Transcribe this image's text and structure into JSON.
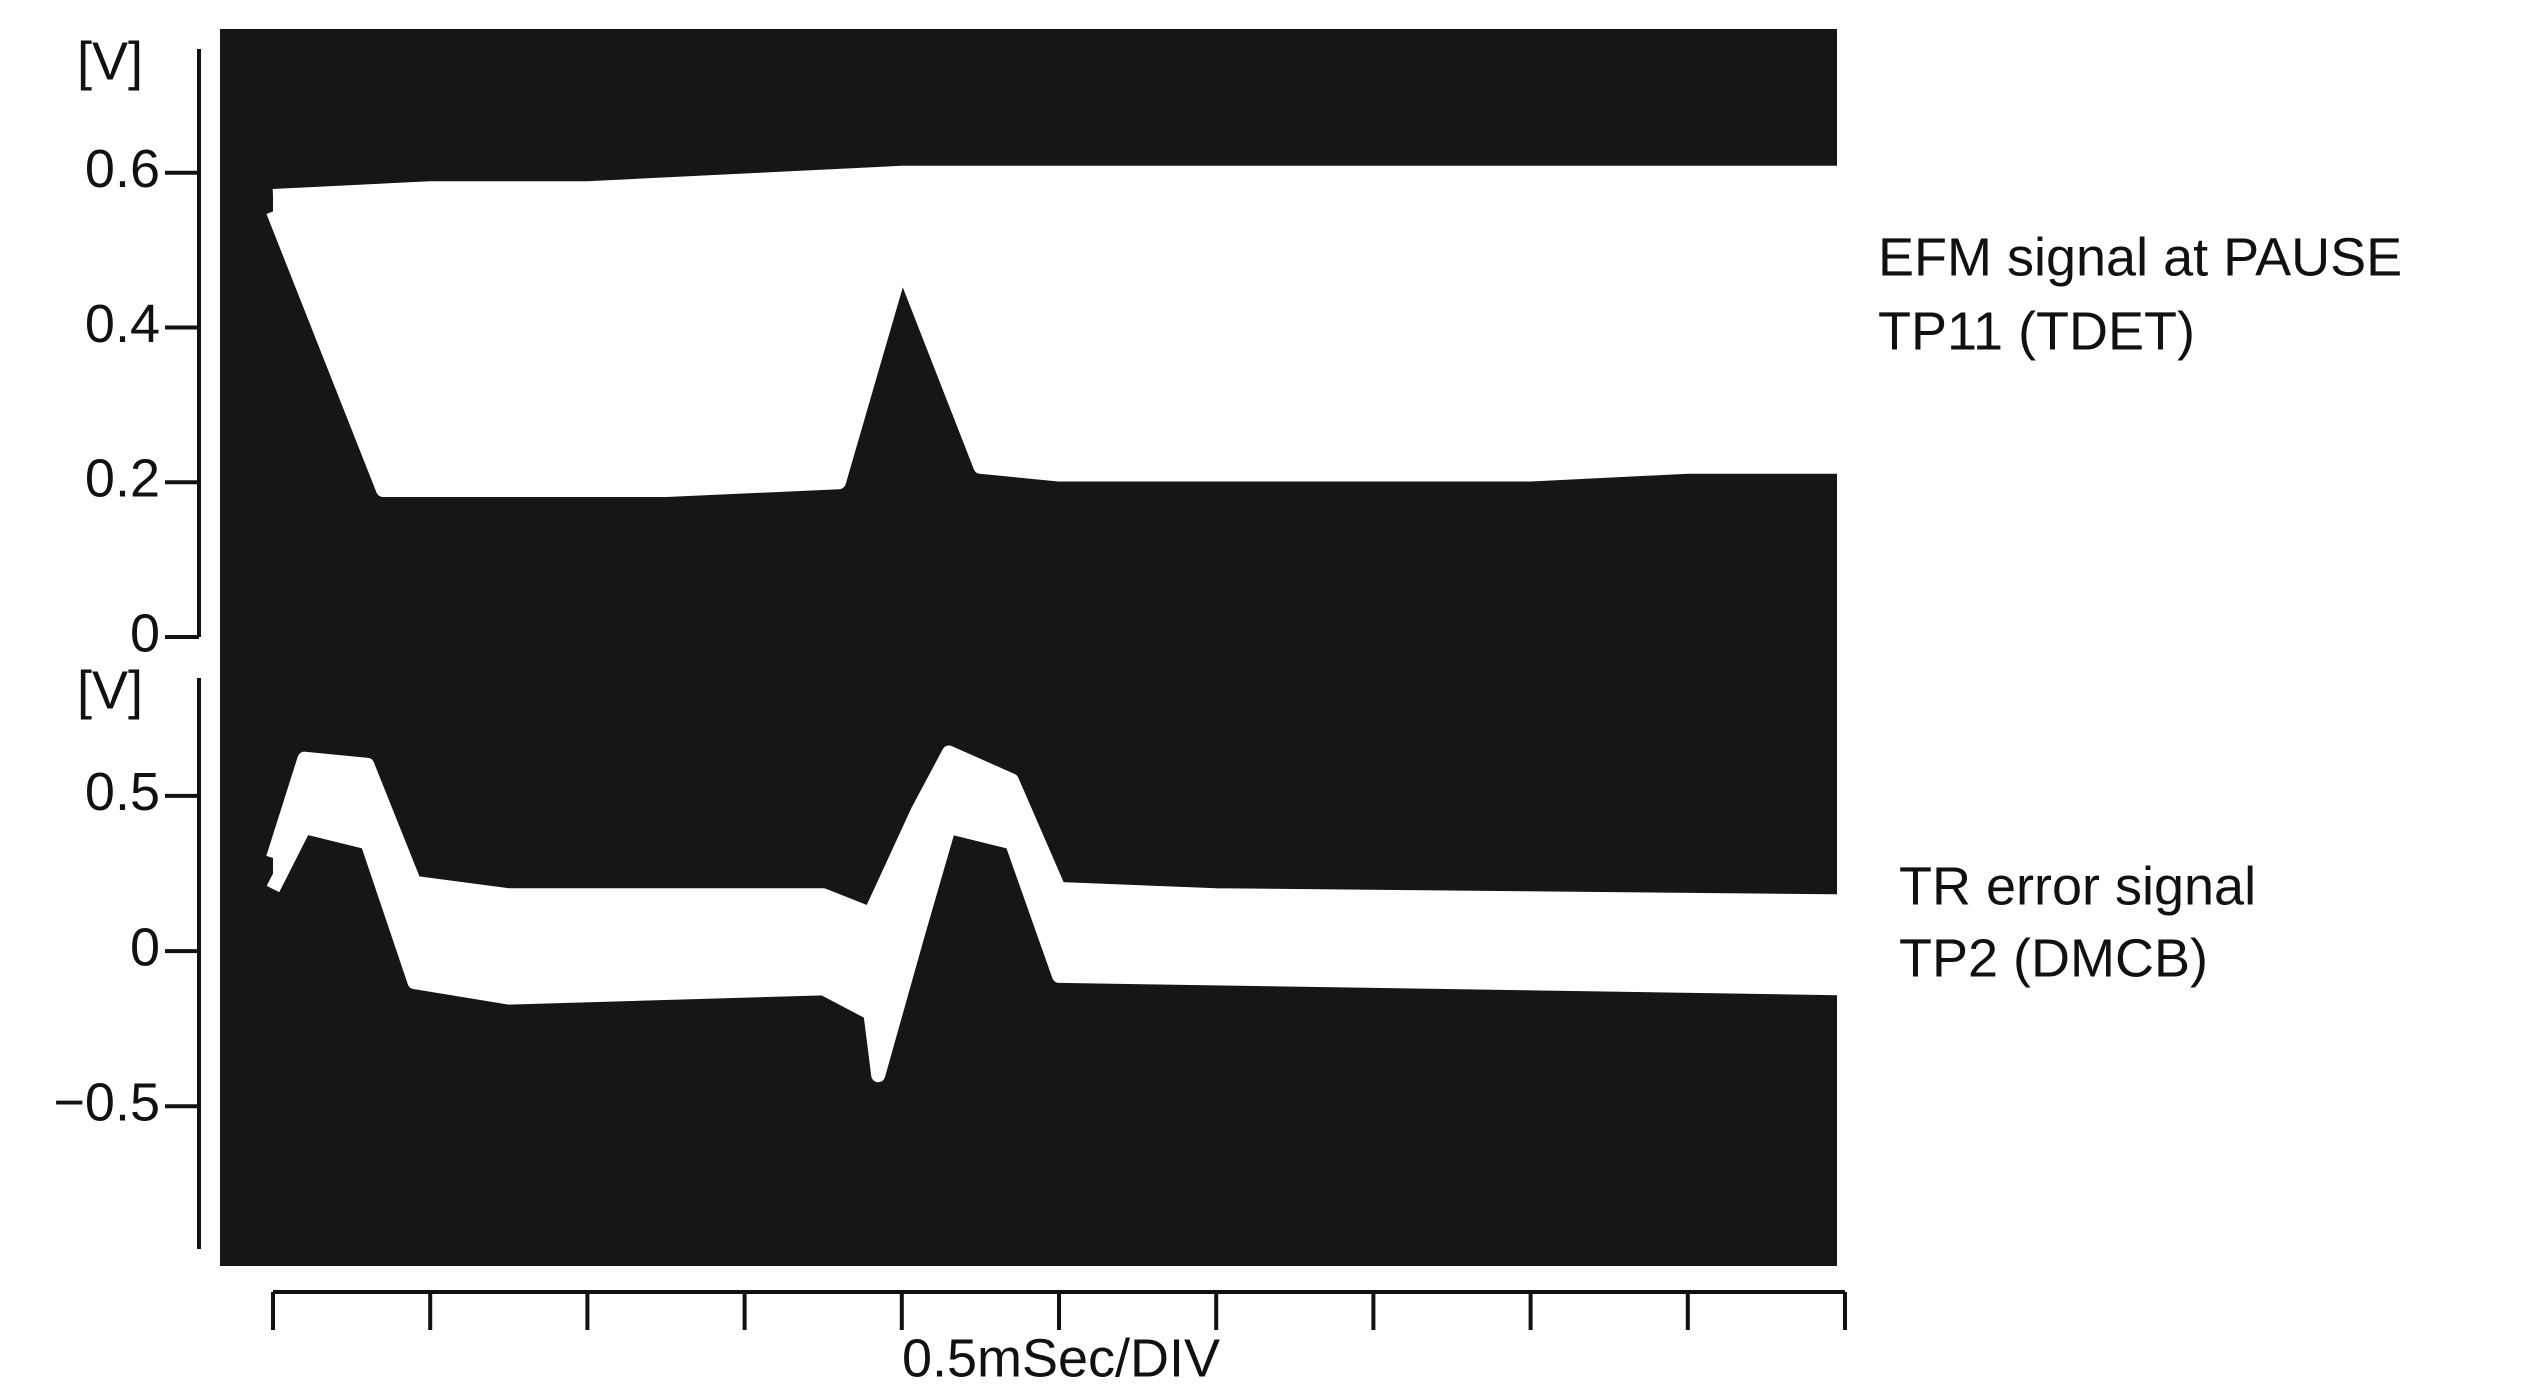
{
  "chart_data": [
    {
      "type": "area",
      "ylabel": "[V]",
      "annotations": [
        "EFM signal at PAUSE",
        "TP11 (TDET)"
      ],
      "xlim": [
        0,
        10
      ],
      "ylim": [
        0,
        0.76
      ],
      "yticks": [
        0,
        0.2,
        0.4,
        0.6
      ],
      "series": [
        {
          "color": "#ffffff",
          "x": [
            0,
            1,
            2,
            3,
            4,
            4.5,
            5,
            6,
            7,
            8,
            9,
            10
          ],
          "values": [
            0.57,
            0.58,
            0.58,
            0.59,
            0.6,
            0.6,
            0.6,
            0.6,
            0.6,
            0.6,
            0.6,
            0.6
          ]
        },
        {
          "color": "#ffffff",
          "x": [
            0,
            0.7,
            1.5,
            2.5,
            3.6,
            4.0,
            4.5,
            5,
            6,
            7,
            8,
            9,
            10
          ],
          "values": [
            0.55,
            0.19,
            0.19,
            0.19,
            0.2,
            0.48,
            0.22,
            0.21,
            0.21,
            0.21,
            0.21,
            0.22,
            0.22
          ]
        }
      ]
    },
    {
      "type": "area",
      "ylabel": "[V]",
      "annotations": [
        "TR error signal",
        "TP2 (DMCB)"
      ],
      "xlabel": "0.5mSec/DIV",
      "xlim": [
        0,
        10
      ],
      "xticks": [
        0,
        1,
        2,
        3,
        4,
        5,
        6,
        7,
        8,
        9,
        10
      ],
      "ylim": [
        -0.96,
        0.88
      ],
      "yticks": [
        {
          "value": -0.5,
          "label": "−0.5"
        },
        0,
        0.5
      ],
      "series": [
        {
          "color": "#ffffff",
          "x": [
            0,
            0.2,
            0.6,
            0.9,
            1.5,
            3.5,
            3.8,
            4.1,
            4.3,
            4.7,
            5.0,
            6,
            10
          ],
          "values": [
            0.3,
            0.62,
            0.6,
            0.22,
            0.18,
            0.18,
            0.12,
            0.45,
            0.64,
            0.55,
            0.2,
            0.18,
            0.16
          ]
        },
        {
          "color": "#ffffff",
          "x": [
            0,
            0.2,
            0.6,
            0.9,
            1.5,
            3.5,
            3.8,
            3.85,
            4.1,
            4.3,
            4.7,
            5.0,
            10
          ],
          "values": [
            0.2,
            0.4,
            0.35,
            -0.1,
            -0.15,
            -0.12,
            -0.2,
            -0.4,
            0.05,
            0.4,
            0.35,
            -0.08,
            -0.12
          ]
        }
      ]
    }
  ]
}
